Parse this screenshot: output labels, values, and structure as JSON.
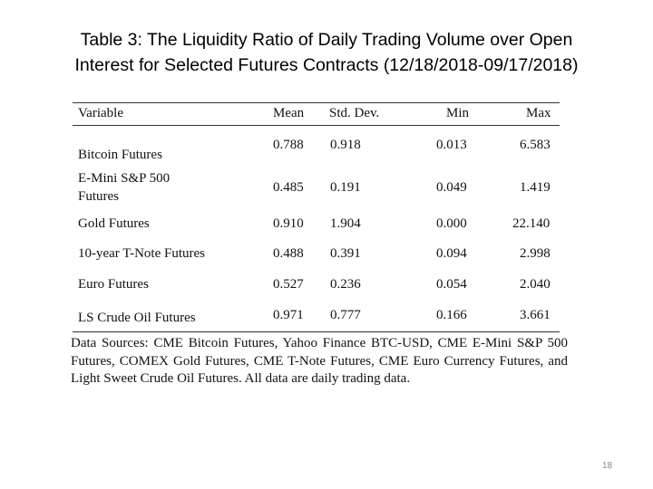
{
  "slide": {
    "title_line1": "Table 3: The Liquidity Ratio of Daily Trading Volume over Open",
    "title_line2": "Interest for Selected Futures Contracts (12/18/2018-09/17/2018)",
    "page_number": "18"
  },
  "table": {
    "headers": [
      "Variable",
      "Mean",
      "Std. Dev.",
      "Min",
      "Max"
    ],
    "rows": [
      {
        "variable": "Bitcoin Futures",
        "mean": "0.788",
        "sd": "0.918",
        "min": "0.013",
        "max": "6.583"
      },
      {
        "variable_line1": "E-Mini S&P 500",
        "variable_line2": "Futures",
        "mean": "0.485",
        "sd": "0.191",
        "min": "0.049",
        "max": "1.419"
      },
      {
        "variable": "Gold Futures",
        "mean": "0.910",
        "sd": "1.904",
        "min": "0.000",
        "max": "22.140"
      },
      {
        "variable": "10-year T-Note Futures",
        "mean": "0.488",
        "sd": "0.391",
        "min": "0.094",
        "max": "2.998"
      },
      {
        "variable": "Euro Futures",
        "mean": "0.527",
        "sd": "0.236",
        "min": "0.054",
        "max": "2.040"
      },
      {
        "variable": "LS Crude Oil Futures",
        "mean": "0.971",
        "sd": "0.777",
        "min": "0.166",
        "max": "3.661"
      }
    ]
  },
  "note": {
    "text": "Data Sources: CME Bitcoin Futures, Yahoo Finance BTC-USD, CME E-Mini S&P 500 Futures, COMEX Gold Futures, CME T-Note Futures, CME Euro Currency Futures, and Light Sweet Crude Oil Futures. All data are daily trading data."
  }
}
